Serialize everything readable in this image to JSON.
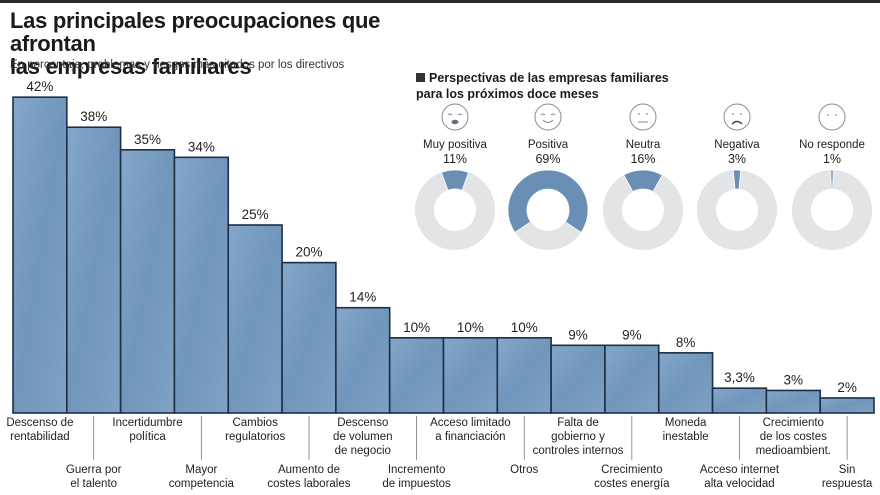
{
  "header": {
    "title_line1": "Las principales preocupaciones que afrontan",
    "title_line2": "las empresas familiares",
    "subtitle": "En porcentaje, problemas y riesgos más citados por los directivos"
  },
  "colors": {
    "bar_fill": "#7b9fc4",
    "bar_stroke": "#1d2f45",
    "donut_fill": "#6a8fb5",
    "donut_track": "#e3e4e6",
    "face_stroke": "#8a8a8a"
  },
  "chart_data": [
    {
      "type": "bar",
      "title": "Las principales preocupaciones que afrontan las empresas familiares",
      "subtitle": "En porcentaje, problemas y riesgos más citados por los directivos",
      "xlabel": "",
      "ylabel": "%",
      "ylim": [
        0,
        42
      ],
      "grid": false,
      "categories": [
        "Descenso de rentabilidad",
        "Guerra por el talento",
        "Incertidumbre política",
        "Mayor competencia",
        "Cambios regulatorios",
        "Aumento de costes laborales",
        "Descenso de volumen de negocio",
        "Incremento de impuestos",
        "Acceso limitado a financiación",
        "Otros",
        "Falta de gobierno y controles internos",
        "Crecimiento costes energía",
        "Moneda inestable",
        "Acceso internet alta velocidad",
        "Crecimiento de los costes medioambient.",
        "Sin respuesta"
      ],
      "category_label_lines": [
        [
          "Descenso de",
          "rentabilidad"
        ],
        [
          "Guerra por",
          "el talento"
        ],
        [
          "Incertidumbre",
          "política"
        ],
        [
          "Mayor",
          "competencia"
        ],
        [
          "Cambios",
          "regulatorios"
        ],
        [
          "Aumento de",
          "costes laborales"
        ],
        [
          "Descenso",
          "de volumen",
          "de negocio"
        ],
        [
          "Incremento",
          "de impuestos"
        ],
        [
          "Acceso limitado",
          "a financiación"
        ],
        [
          "Otros"
        ],
        [
          "Falta de",
          "gobierno y",
          "controles internos"
        ],
        [
          "Crecimiento",
          "costes energía"
        ],
        [
          "Moneda",
          "inestable"
        ],
        [
          "Acceso internet",
          "alta velocidad"
        ],
        [
          "Crecimiento",
          "de los costes",
          "medioambient."
        ],
        [
          "Sin",
          "respuesta"
        ]
      ],
      "values": [
        42,
        38,
        35,
        34,
        25,
        20,
        14,
        10,
        10,
        10,
        9,
        9,
        8,
        3.3,
        3,
        2
      ],
      "value_labels": [
        "42%",
        "38%",
        "35%",
        "34%",
        "25%",
        "20%",
        "14%",
        "10%",
        "10%",
        "10%",
        "9%",
        "9%",
        "8%",
        "3,3%",
        "3%",
        "2%"
      ]
    },
    {
      "type": "pie",
      "title": "Perspectivas de las empresas familiares para los próximos doce meses",
      "categories": [
        "Muy positiva",
        "Positiva",
        "Neutra",
        "Negativa",
        "No responde"
      ],
      "values": [
        11,
        69,
        16,
        3,
        1
      ],
      "value_labels": [
        "11%",
        "69%",
        "16%",
        "3%",
        "1%"
      ],
      "icons": [
        "very-happy-face-icon",
        "happy-face-icon",
        "neutral-face-icon",
        "sad-face-icon",
        "no-answer-face-icon"
      ]
    }
  ],
  "inset": {
    "title_line1": "Perspectivas de las empresas familiares",
    "title_line2": "para los próximos doce meses"
  }
}
